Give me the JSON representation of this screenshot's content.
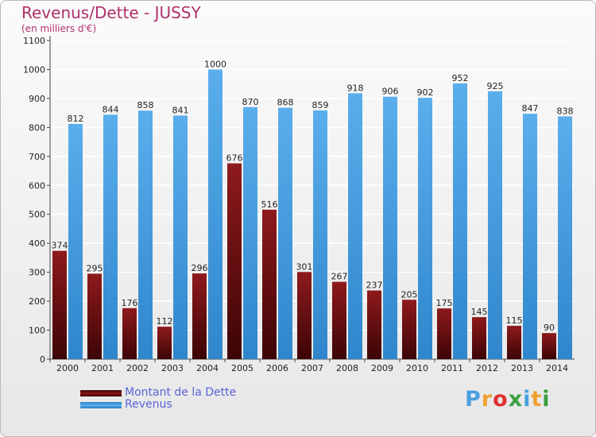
{
  "header": {
    "title": "Revenus/Dette - JUSSY",
    "subtitle": "(en milliers d'€)"
  },
  "chart_data": {
    "type": "bar",
    "categories": [
      "2000",
      "2001",
      "2002",
      "2003",
      "2004",
      "2005",
      "2006",
      "2007",
      "2008",
      "2009",
      "2010",
      "2011",
      "2012",
      "2013",
      "2014"
    ],
    "series": [
      {
        "name": "Montant de la Dette",
        "color": "#7a0d10",
        "values": [
          374,
          295,
          176,
          112,
          296,
          676,
          516,
          301,
          267,
          237,
          205,
          175,
          145,
          115,
          90
        ],
        "labels": [
          "374",
          "295",
          "176",
          "112",
          "296",
          "676",
          "516",
          "301",
          "267",
          "237",
          "205",
          "175",
          "145",
          "115",
          "90"
        ]
      },
      {
        "name": "Revenus",
        "color": "#4fa4e4",
        "values": [
          812,
          844,
          858,
          841,
          1000,
          870,
          868,
          859,
          918,
          906,
          902,
          952,
          925,
          847,
          838
        ],
        "labels": [
          "812",
          "844",
          "858",
          "841",
          "1000",
          "870",
          "868",
          "859",
          "918",
          "906",
          "902",
          "952",
          "925",
          "847",
          "838"
        ]
      }
    ],
    "yticks": [
      "0",
      "100",
      "200",
      "300",
      "400",
      "500",
      "600",
      "700",
      "800",
      "900",
      "1000",
      "1100"
    ],
    "ylim": [
      0,
      1100
    ],
    "grid": true,
    "legend": "bottom-left"
  },
  "logo": {
    "letters": [
      "P",
      "r",
      "o",
      "x",
      "i",
      "t",
      "i"
    ],
    "colors": [
      "#4aa0e0",
      "#f0a030",
      "#e03030",
      "#3aa040",
      "#4aa0e0",
      "#f0a030",
      "#3aa040"
    ]
  }
}
